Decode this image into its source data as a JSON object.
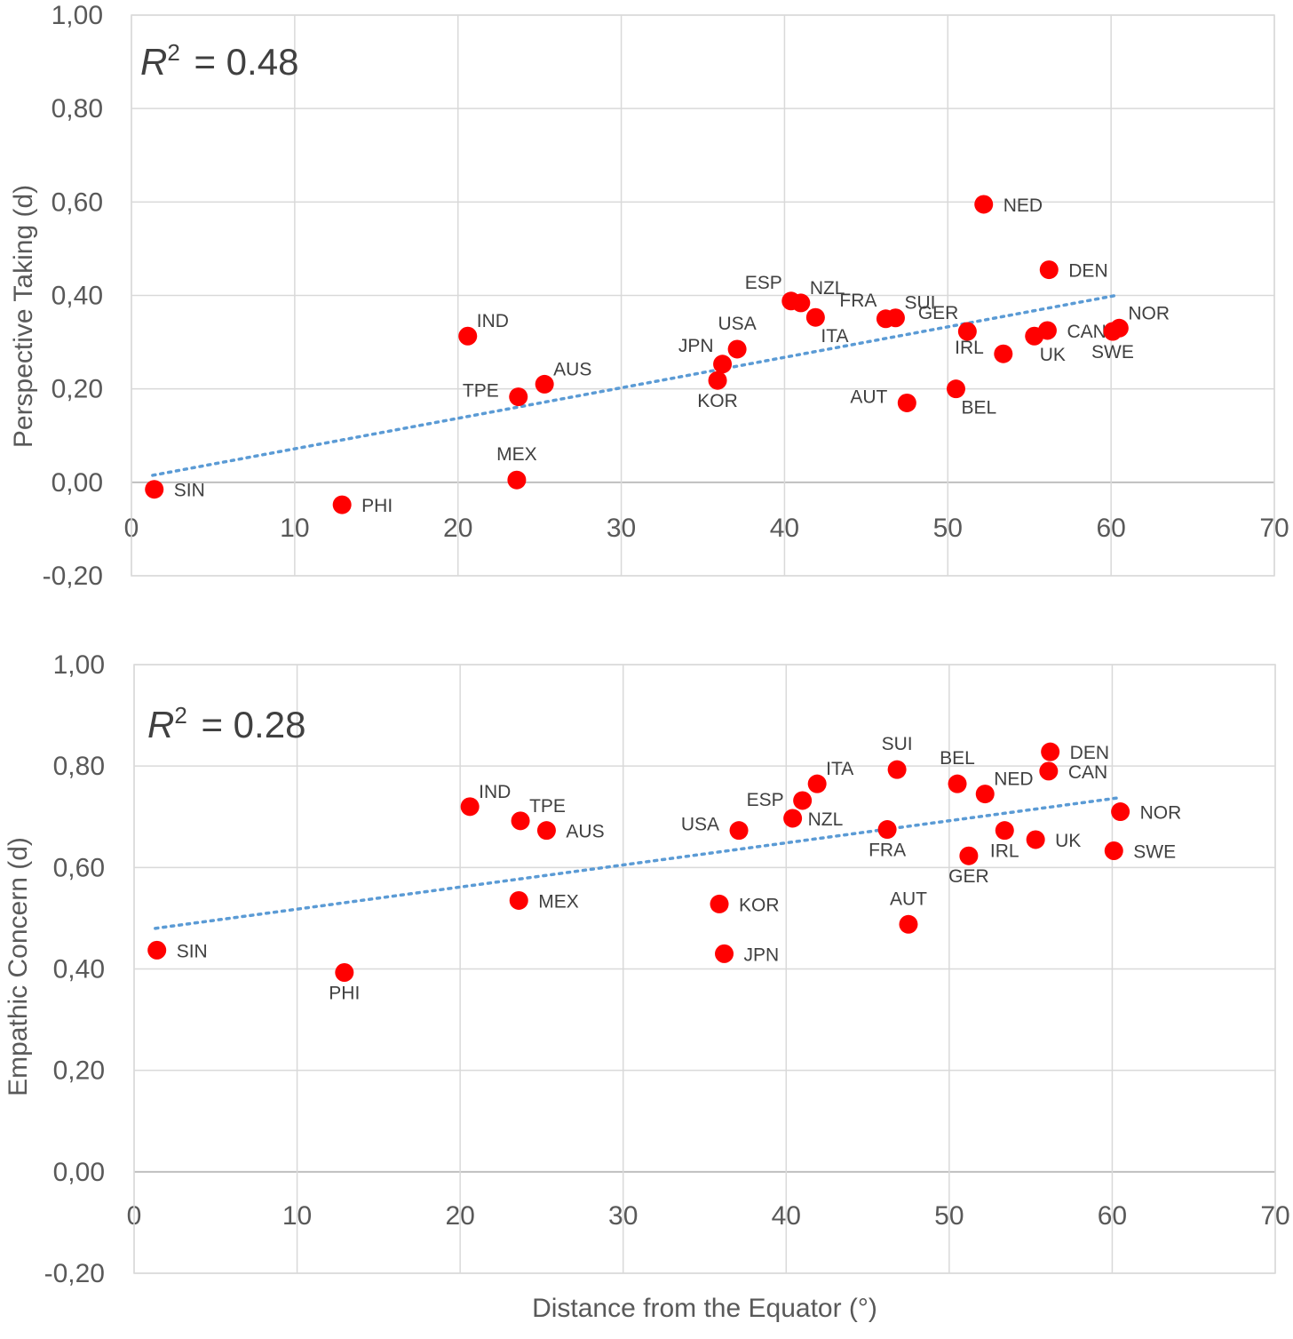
{
  "chart_data": [
    {
      "type": "scatter",
      "title": "",
      "annotation": {
        "prefix": "R",
        "exponent": "2",
        "text": "= 0.48"
      },
      "xlabel": "",
      "ylabel": "Perspective Taking (d)",
      "xlim": [
        0,
        70
      ],
      "ylim": [
        -0.2,
        1.0
      ],
      "xticks": [
        0,
        10,
        20,
        30,
        40,
        50,
        60,
        70
      ],
      "yticks": [
        -0.2,
        0.0,
        0.2,
        0.4,
        0.6,
        0.8,
        1.0
      ],
      "ytick_labels": [
        "-0,20",
        "0,00",
        "0,20",
        "0,40",
        "0,60",
        "0,80",
        "1,00"
      ],
      "grid": true,
      "marker_color": "#ff0000",
      "trendline": {
        "style": "dotted",
        "color": "#5b9bd5",
        "from": [
          1.3,
          0.015
        ],
        "to": [
          60.3,
          0.4
        ]
      },
      "points": [
        {
          "label": "SIN",
          "x": 1.4,
          "y": -0.015,
          "pos": "right"
        },
        {
          "label": "PHI",
          "x": 12.9,
          "y": -0.048,
          "pos": "right"
        },
        {
          "label": "IND",
          "x": 20.6,
          "y": 0.313,
          "pos": "upper-right"
        },
        {
          "label": "TPE",
          "x": 23.7,
          "y": 0.183,
          "pos": "left"
        },
        {
          "label": "MEX",
          "x": 23.6,
          "y": 0.005,
          "pos": "above"
        },
        {
          "label": "AUS",
          "x": 25.3,
          "y": 0.21,
          "pos": "upper-right"
        },
        {
          "label": "JPN",
          "x": 36.2,
          "y": 0.253,
          "pos": "upper-left"
        },
        {
          "label": "KOR",
          "x": 35.9,
          "y": 0.218,
          "pos": "below"
        },
        {
          "label": "USA",
          "x": 37.1,
          "y": 0.285,
          "pos": "above"
        },
        {
          "label": "ESP",
          "x": 40.4,
          "y": 0.388,
          "pos": "upper-left"
        },
        {
          "label": "NZL",
          "x": 41.0,
          "y": 0.384,
          "pos": "upper-right"
        },
        {
          "label": "ITA",
          "x": 41.9,
          "y": 0.353,
          "pos": "lower-right"
        },
        {
          "label": "FRA",
          "x": 46.2,
          "y": 0.35,
          "pos": "upper-left"
        },
        {
          "label": "SUI",
          "x": 46.8,
          "y": 0.352,
          "pos": "upper-right"
        },
        {
          "label": "AUT",
          "x": 47.5,
          "y": 0.17,
          "pos": "left"
        },
        {
          "label": "BEL",
          "x": 50.5,
          "y": 0.2,
          "pos": "lower-right"
        },
        {
          "label": "GER",
          "x": 51.2,
          "y": 0.323,
          "pos": "upper-left"
        },
        {
          "label": "NED",
          "x": 52.2,
          "y": 0.595,
          "pos": "right"
        },
        {
          "label": "IRL",
          "x": 53.4,
          "y": 0.275,
          "pos": "left"
        },
        {
          "label": "UK",
          "x": 55.3,
          "y": 0.313,
          "pos": "lower-right"
        },
        {
          "label": "DEN",
          "x": 56.2,
          "y": 0.455,
          "pos": "right"
        },
        {
          "label": "CAN",
          "x": 56.1,
          "y": 0.325,
          "pos": "right"
        },
        {
          "label": "SWE",
          "x": 60.1,
          "y": 0.323,
          "pos": "below"
        },
        {
          "label": "NOR",
          "x": 60.5,
          "y": 0.33,
          "pos": "upper-right"
        }
      ]
    },
    {
      "type": "scatter",
      "title": "",
      "annotation": {
        "prefix": "R",
        "exponent": "2",
        "text": "= 0.28"
      },
      "xlabel": "Distance from the Equator (°)",
      "ylabel": "Empathic Concern (d)",
      "xlim": [
        0,
        70
      ],
      "ylim": [
        -0.2,
        1.0
      ],
      "xticks": [
        0,
        10,
        20,
        30,
        40,
        50,
        60,
        70
      ],
      "yticks": [
        -0.2,
        0.0,
        0.2,
        0.4,
        0.6,
        0.8,
        1.0
      ],
      "ytick_labels": [
        "-0,20",
        "0,00",
        "0,20",
        "0,40",
        "0,60",
        "0,80",
        "1,00"
      ],
      "grid": true,
      "marker_color": "#ff0000",
      "trendline": {
        "style": "dotted",
        "color": "#5b9bd5",
        "from": [
          1.3,
          0.48
        ],
        "to": [
          60.3,
          0.737
        ]
      },
      "points": [
        {
          "label": "SIN",
          "x": 1.4,
          "y": 0.437,
          "pos": "right"
        },
        {
          "label": "PHI",
          "x": 12.9,
          "y": 0.393,
          "pos": "below"
        },
        {
          "label": "IND",
          "x": 20.6,
          "y": 0.72,
          "pos": "upper-right"
        },
        {
          "label": "TPE",
          "x": 23.7,
          "y": 0.692,
          "pos": "upper-right"
        },
        {
          "label": "AUS",
          "x": 25.3,
          "y": 0.673,
          "pos": "right"
        },
        {
          "label": "MEX",
          "x": 23.6,
          "y": 0.535,
          "pos": "right"
        },
        {
          "label": "USA",
          "x": 37.1,
          "y": 0.673,
          "pos": "left"
        },
        {
          "label": "KOR",
          "x": 35.9,
          "y": 0.528,
          "pos": "right"
        },
        {
          "label": "JPN",
          "x": 36.2,
          "y": 0.43,
          "pos": "right"
        },
        {
          "label": "ESP",
          "x": 40.4,
          "y": 0.697,
          "pos": "upper-left"
        },
        {
          "label": "NZL",
          "x": 41.0,
          "y": 0.732,
          "pos": "lower-right"
        },
        {
          "label": "ITA",
          "x": 41.9,
          "y": 0.765,
          "pos": "upper-right"
        },
        {
          "label": "SUI",
          "x": 46.8,
          "y": 0.793,
          "pos": "above"
        },
        {
          "label": "FRA",
          "x": 46.2,
          "y": 0.675,
          "pos": "below"
        },
        {
          "label": "AUT",
          "x": 47.5,
          "y": 0.488,
          "pos": "above"
        },
        {
          "label": "BEL",
          "x": 50.5,
          "y": 0.765,
          "pos": "above"
        },
        {
          "label": "NED",
          "x": 52.2,
          "y": 0.745,
          "pos": "upper-right"
        },
        {
          "label": "IRL",
          "x": 53.4,
          "y": 0.673,
          "pos": "below"
        },
        {
          "label": "GER",
          "x": 51.2,
          "y": 0.623,
          "pos": "below"
        },
        {
          "label": "UK",
          "x": 55.3,
          "y": 0.655,
          "pos": "right"
        },
        {
          "label": "DEN",
          "x": 56.2,
          "y": 0.828,
          "pos": "right"
        },
        {
          "label": "CAN",
          "x": 56.1,
          "y": 0.79,
          "pos": "right"
        },
        {
          "label": "NOR",
          "x": 60.5,
          "y": 0.71,
          "pos": "right"
        },
        {
          "label": "SWE",
          "x": 60.1,
          "y": 0.633,
          "pos": "right"
        }
      ]
    }
  ]
}
